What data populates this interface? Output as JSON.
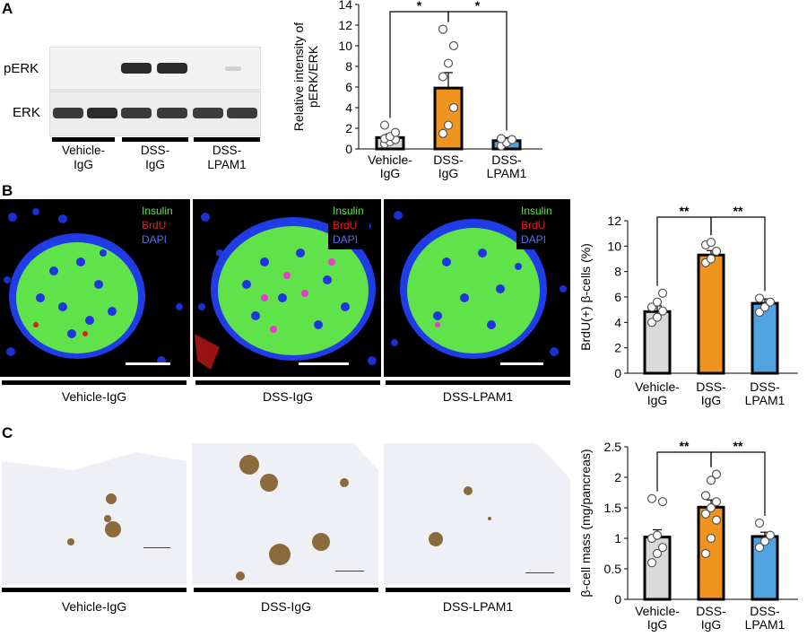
{
  "panels": {
    "A": {
      "letter": "A",
      "blot": {
        "row_labels": [
          "pERK",
          "ERK"
        ],
        "group_labels": [
          "Vehicle-\nIgG",
          "DSS-\nIgG",
          "DSS-\nLPAM1"
        ]
      }
    },
    "B": {
      "letter": "B",
      "stain_legend": [
        "Insulin",
        "BrdU",
        "DAPI"
      ],
      "group_labels": [
        "Vehicle-IgG",
        "DSS-IgG",
        "DSS-LPAM1"
      ]
    },
    "C": {
      "letter": "C",
      "group_labels": [
        "Vehicle-IgG",
        "DSS-IgG",
        "DSS-LPAM1"
      ]
    }
  },
  "colors": {
    "vehicle": "#d9d9d9",
    "dss_igg": "#f0941e",
    "dss_lpam1": "#4fa3e0",
    "insulin": "#5fe24a",
    "brdu": "#e02020",
    "dapi": "#2a3fe8"
  },
  "chart_data": [
    {
      "id": "A",
      "type": "bar",
      "categories": [
        "Vehicle-\nIgG",
        "DSS-\nIgG",
        "DSS-\nLPAM1"
      ],
      "values": [
        1.1,
        5.9,
        0.8
      ],
      "errors": [
        0.35,
        1.5,
        0.3
      ],
      "points": [
        [
          0.5,
          0.7,
          0.9,
          1.0,
          1.2,
          1.6,
          2.3
        ],
        [
          1.5,
          2.3,
          4.0,
          7.0,
          8.3,
          10.0,
          11.6
        ],
        [
          0.3,
          0.6,
          0.9,
          1.0
        ]
      ],
      "ylabel": "Relative intensity of\npERK/ERK",
      "ylim": [
        0,
        14
      ],
      "yticks": [
        0,
        2,
        4,
        6,
        8,
        10,
        12,
        14
      ],
      "significance": [
        {
          "from": 0,
          "to": 1,
          "label": "*"
        },
        {
          "from": 1,
          "to": 2,
          "label": "*"
        }
      ]
    },
    {
      "id": "B",
      "type": "bar",
      "categories": [
        "Vehicle-\nIgG",
        "DSS-\nIgG",
        "DSS-\nLPAM1"
      ],
      "values": [
        4.85,
        9.3,
        5.5
      ],
      "errors": [
        0.45,
        0.35,
        0.35
      ],
      "points": [
        [
          4.0,
          4.4,
          4.9,
          5.2,
          5.6,
          6.3
        ],
        [
          8.7,
          9.0,
          9.6,
          10.1,
          10.3
        ],
        [
          4.8,
          5.2,
          5.6,
          5.9
        ]
      ],
      "ylabel": "BrdU(+) β-cells (%)",
      "ylim": [
        0,
        12
      ],
      "yticks": [
        0,
        2,
        4,
        6,
        8,
        10,
        12
      ],
      "significance": [
        {
          "from": 0,
          "to": 1,
          "label": "**"
        },
        {
          "from": 1,
          "to": 2,
          "label": "**"
        }
      ]
    },
    {
      "id": "C",
      "type": "bar",
      "categories": [
        "Vehicle-\nIgG",
        "DSS-\nIgG",
        "DSS-\nLPAM1"
      ],
      "values": [
        1.02,
        1.51,
        1.03
      ],
      "errors": [
        0.12,
        0.12,
        0.07
      ],
      "points": [
        [
          0.6,
          0.75,
          0.85,
          1.0,
          1.05,
          1.6,
          1.65
        ],
        [
          0.75,
          1.0,
          1.3,
          1.4,
          1.5,
          1.6,
          1.7,
          1.95,
          2.05
        ],
        [
          0.85,
          0.95,
          1.05,
          1.25
        ]
      ],
      "ylabel": "β-cell mass (mg/pancreas)",
      "ylim": [
        0,
        2.5
      ],
      "yticks": [
        "0",
        "0.5",
        "1",
        "1.5",
        "2",
        "2.5"
      ],
      "significance": [
        {
          "from": 0,
          "to": 1,
          "label": "**"
        },
        {
          "from": 1,
          "to": 2,
          "label": "**"
        }
      ]
    }
  ]
}
